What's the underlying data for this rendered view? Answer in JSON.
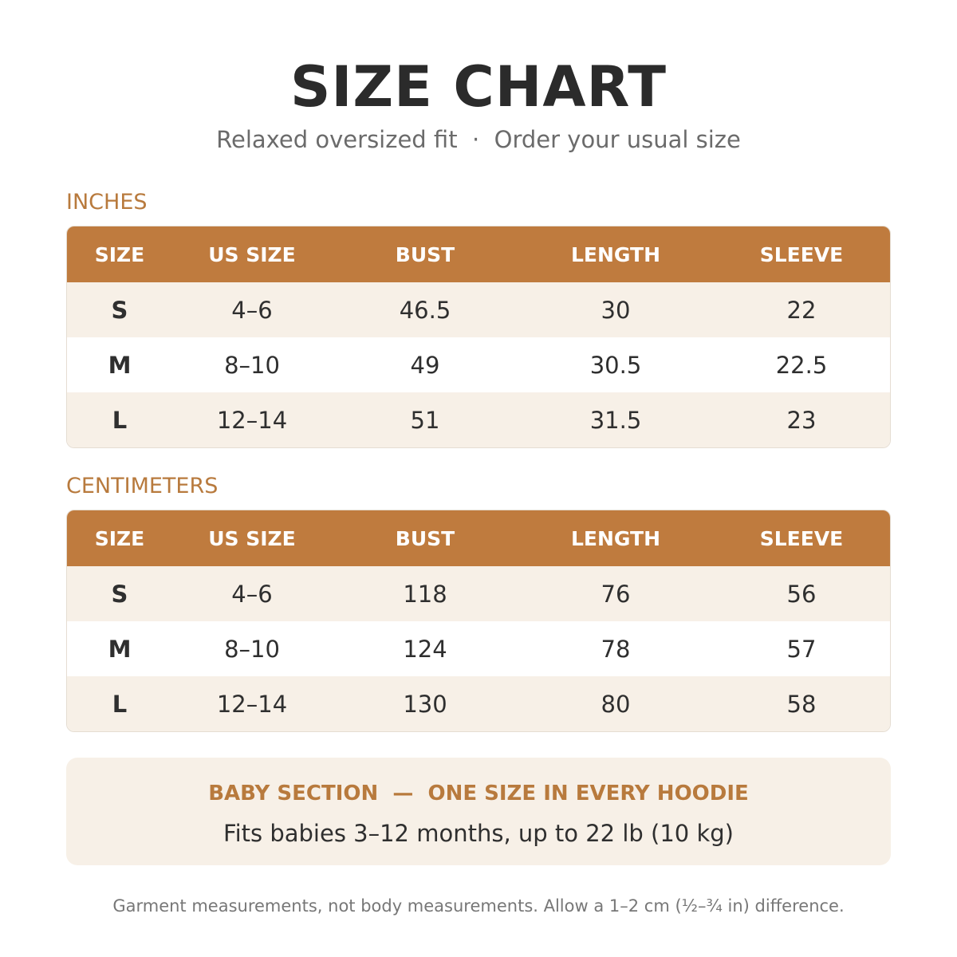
{
  "header": {
    "title": "SIZE CHART",
    "subtitle": "Relaxed oversized fit  ·  Order your usual size"
  },
  "tables": [
    {
      "label": "INCHES",
      "columns": [
        "SIZE",
        "US SIZE",
        "BUST",
        "LENGTH",
        "SLEEVE"
      ],
      "rows": [
        [
          "S",
          "4–6",
          "46.5",
          "30",
          "22"
        ],
        [
          "M",
          "8–10",
          "49",
          "30.5",
          "22.5"
        ],
        [
          "L",
          "12–14",
          "51",
          "31.5",
          "23"
        ]
      ]
    },
    {
      "label": "CENTIMETERS",
      "columns": [
        "SIZE",
        "US SIZE",
        "BUST",
        "LENGTH",
        "SLEEVE"
      ],
      "rows": [
        [
          "S",
          "4–6",
          "118",
          "76",
          "56"
        ],
        [
          "M",
          "8–10",
          "124",
          "78",
          "57"
        ],
        [
          "L",
          "12–14",
          "130",
          "80",
          "58"
        ]
      ]
    }
  ],
  "baby": {
    "title": "BABY SECTION  —  ONE SIZE IN EVERY HOODIE",
    "text": "Fits babies 3–12 months, up to 22 lb (10 kg)"
  },
  "footer": "Garment measurements, not body measurements. Allow a 1–2 cm (½–¾ in) difference."
}
